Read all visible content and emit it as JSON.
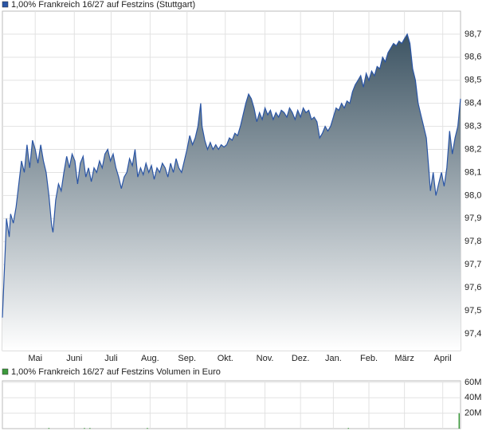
{
  "chart_data": [
    {
      "type": "area",
      "title": "1,00% Frankreich 16/27 auf Festzins (Stuttgart)",
      "color": "#2a55a5",
      "x": [
        0,
        2,
        3,
        5,
        6,
        8,
        10,
        12,
        14,
        16,
        18,
        20,
        22,
        24,
        26,
        28,
        30,
        32,
        34,
        36,
        37,
        39,
        41,
        43,
        45,
        47,
        49,
        51,
        53,
        55,
        57,
        59,
        61,
        63,
        65,
        67,
        69,
        71,
        73,
        75,
        77,
        79,
        81,
        83,
        85,
        87,
        89,
        91,
        93,
        95,
        97,
        99,
        101,
        103,
        105,
        107,
        109,
        111,
        113,
        115,
        117,
        119,
        121,
        123,
        125,
        127,
        129,
        131,
        133,
        135,
        137,
        139,
        141,
        143,
        145,
        146,
        148,
        150,
        152,
        154,
        156,
        158,
        160,
        162,
        164,
        166,
        168,
        170,
        172,
        174,
        176,
        178,
        180,
        182,
        184,
        186,
        188,
        190,
        192,
        194,
        196,
        198,
        200,
        202,
        204,
        206,
        208,
        210,
        212,
        214,
        216,
        218,
        220,
        222,
        224,
        226,
        228,
        230,
        232,
        234,
        236,
        238,
        240,
        242,
        244,
        246,
        248,
        250,
        252,
        254,
        256,
        258,
        260,
        262,
        264,
        266,
        268,
        270,
        272,
        274,
        276,
        278,
        280,
        282,
        284,
        286,
        288,
        290,
        292,
        294,
        296,
        298,
        300,
        302,
        304,
        306,
        308,
        310,
        312,
        313,
        315,
        317,
        319,
        321,
        323,
        325,
        327,
        329,
        331,
        333,
        335
      ],
      "values": [
        97.47,
        97.75,
        97.9,
        97.82,
        97.92,
        97.88,
        97.95,
        98.05,
        98.15,
        98.1,
        98.22,
        98.12,
        98.24,
        98.2,
        98.14,
        98.22,
        98.15,
        98.1,
        98.0,
        97.87,
        97.84,
        97.98,
        98.05,
        98.02,
        98.1,
        98.17,
        98.12,
        98.18,
        98.15,
        98.05,
        98.14,
        98.17,
        98.08,
        98.12,
        98.06,
        98.12,
        98.1,
        98.15,
        98.12,
        98.18,
        98.2,
        98.15,
        98.18,
        98.12,
        98.08,
        98.03,
        98.08,
        98.1,
        98.16,
        98.13,
        98.2,
        98.08,
        98.12,
        98.09,
        98.14,
        98.1,
        98.13,
        98.07,
        98.12,
        98.1,
        98.14,
        98.12,
        98.08,
        98.14,
        98.1,
        98.16,
        98.12,
        98.1,
        98.15,
        98.2,
        98.26,
        98.22,
        98.25,
        98.3,
        98.4,
        98.3,
        98.24,
        98.2,
        98.23,
        98.2,
        98.22,
        98.2,
        98.22,
        98.21,
        98.22,
        98.25,
        98.24,
        98.27,
        98.26,
        98.3,
        98.35,
        98.4,
        98.44,
        98.42,
        98.38,
        98.32,
        98.36,
        98.33,
        98.38,
        98.35,
        98.37,
        98.33,
        98.36,
        98.34,
        98.37,
        98.36,
        98.34,
        98.38,
        98.36,
        98.33,
        98.37,
        98.34,
        98.38,
        98.36,
        98.37,
        98.33,
        98.34,
        98.32,
        98.25,
        98.27,
        98.3,
        98.28,
        98.3,
        98.34,
        98.38,
        98.37,
        98.4,
        98.38,
        98.41,
        98.4,
        98.45,
        98.48,
        98.5,
        98.52,
        98.47,
        98.53,
        98.5,
        98.54,
        98.52,
        98.56,
        98.55,
        98.6,
        98.58,
        98.62,
        98.64,
        98.66,
        98.65,
        98.67,
        98.66,
        98.68,
        98.7,
        98.66,
        98.55,
        98.5,
        98.4,
        98.35,
        98.3,
        98.25,
        98.1,
        98.02,
        98.1,
        98.0,
        98.05,
        98.1,
        98.04,
        98.12,
        98.28,
        98.18,
        98.25,
        98.3,
        98.42
      ],
      "xlim": [
        0,
        335
      ],
      "xticks": [
        {
          "value": 24,
          "label": "Mai"
        },
        {
          "value": 52.6,
          "label": "Juni"
        },
        {
          "value": 79.5,
          "label": "Juli"
        },
        {
          "value": 108,
          "label": "Aug."
        },
        {
          "value": 135,
          "label": "Sep."
        },
        {
          "value": 163,
          "label": "Okt."
        },
        {
          "value": 192,
          "label": "Nov."
        },
        {
          "value": 218,
          "label": "Dez."
        },
        {
          "value": 242,
          "label": "Jan."
        },
        {
          "value": 268,
          "label": "Feb."
        },
        {
          "value": 294,
          "label": "März"
        },
        {
          "value": 322,
          "label": "April"
        }
      ],
      "ylim": [
        97.327,
        98.8
      ],
      "yticks": [
        {
          "value": 97.4,
          "label": "97,4"
        },
        {
          "value": 97.5,
          "label": "97,5"
        },
        {
          "value": 97.6,
          "label": "97,6"
        },
        {
          "value": 97.7,
          "label": "97,7"
        },
        {
          "value": 97.8,
          "label": "97,8"
        },
        {
          "value": 97.9,
          "label": "97,9"
        },
        {
          "value": 98.0,
          "label": "98,0"
        },
        {
          "value": 98.1,
          "label": "98,1"
        },
        {
          "value": 98.2,
          "label": "98,2"
        },
        {
          "value": 98.3,
          "label": "98,3"
        },
        {
          "value": 98.4,
          "label": "98,4"
        },
        {
          "value": 98.5,
          "label": "98,5"
        },
        {
          "value": 98.6,
          "label": "98,6"
        },
        {
          "value": 98.7,
          "label": "98,7"
        }
      ],
      "grid": true
    },
    {
      "type": "bar",
      "title": "1,00% Frankreich 16/27 auf Festzins Volumen in Euro",
      "color": "#3c9a3c",
      "x": [
        34,
        60,
        64,
        106,
        253,
        334
      ],
      "values": [
        800000,
        800000,
        800000,
        800000,
        800000,
        20000000
      ],
      "xlim": [
        0,
        335
      ],
      "xticks": [
        24,
        52.6,
        79.5,
        108,
        135,
        163,
        192,
        218,
        242,
        268,
        294,
        322
      ],
      "ylim": [
        0,
        62000000
      ],
      "yticks": [
        {
          "value": 20000000,
          "label": "20M"
        },
        {
          "value": 40000000,
          "label": "40M"
        },
        {
          "value": 60000000,
          "label": "60M"
        }
      ],
      "grid": true
    }
  ]
}
